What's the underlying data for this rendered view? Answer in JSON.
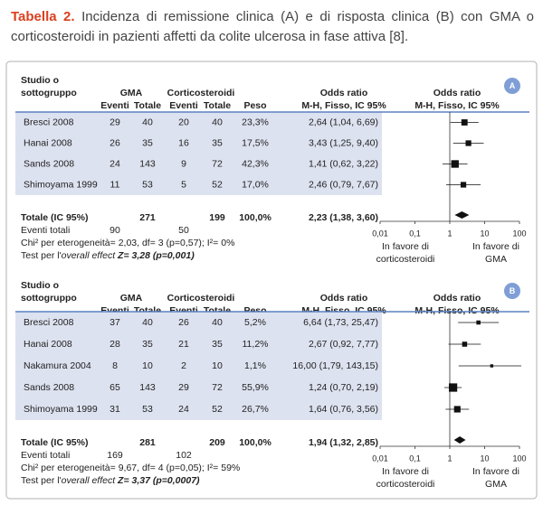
{
  "title": {
    "label": "Tabella 2.",
    "text": "Incidenza di remissione clinica (A) e di risposta clinica (B) con GMA o corticosteroidi in pazienti affetti da colite ulcerosa in fase attiva [8]."
  },
  "panels": [
    {
      "badge": "A",
      "header": {
        "study_lines": [
          "Studio o",
          "sottogruppo"
        ],
        "gma": "GMA",
        "cort": "Corticosteroidi",
        "events": "Eventi",
        "total": "Totale",
        "weight": "Peso",
        "or_lines": [
          "Odds ratio",
          "M-H, Fisso, IC 95%"
        ],
        "plot_lines": [
          "Odds ratio",
          "M-H, Fisso, IC 95%"
        ]
      },
      "rows": [
        {
          "study": "Bresci 2008",
          "gma_events": 29,
          "gma_total": 40,
          "cort_events": 20,
          "cort_total": 40,
          "weight": {
            "value": 23.3,
            "label": "23,3%"
          },
          "or": 2.64,
          "ci": [
            1.04,
            6.69
          ],
          "or_label": "2,64 (1,04, 6,69)"
        },
        {
          "study": "Hanai 2008",
          "gma_events": 26,
          "gma_total": 35,
          "cort_events": 16,
          "cort_total": 35,
          "weight": {
            "value": 17.5,
            "label": "17,5%"
          },
          "or": 3.43,
          "ci": [
            1.25,
            9.4
          ],
          "or_label": "3,43 (1,25, 9,40)"
        },
        {
          "study": "Sands 2008",
          "gma_events": 24,
          "gma_total": 143,
          "cort_events": 9,
          "cort_total": 72,
          "weight": {
            "value": 42.3,
            "label": "42,3%"
          },
          "or": 1.41,
          "ci": [
            0.62,
            3.22
          ],
          "or_label": "1,41 (0,62, 3,22)"
        },
        {
          "study": "Shimoyama 1999",
          "gma_events": 11,
          "gma_total": 53,
          "cort_events": 5,
          "cort_total": 52,
          "weight": {
            "value": 17.0,
            "label": "17,0%"
          },
          "or": 2.46,
          "ci": [
            0.79,
            7.67
          ],
          "or_label": "2,46 (0,79, 7,67)"
        }
      ],
      "total": {
        "label": "Totale (IC 95%)",
        "gma_total": 271,
        "cort_total": 199,
        "weight": "100,0%",
        "or": 2.23,
        "ci": [
          1.38,
          3.6
        ],
        "or_label": "2,23 (1,38, 3,60)"
      },
      "events": {
        "label": "Eventi totali",
        "gma": 90,
        "cort": 50
      },
      "heterogeneity": "Chi² per eterogeneità= 2,03, df= 3 (p=0,57); I²= 0%",
      "overall": [
        "Test per l'",
        "overall effect",
        " Z= 3,28 (p=0,001)"
      ],
      "axis": {
        "xlim": [
          0.01,
          100
        ],
        "xticks": [
          {
            "value": 0.01,
            "label": "0,01"
          },
          {
            "value": 0.1,
            "label": "0,1"
          },
          1,
          10,
          100
        ],
        "favors_left": [
          "In favore di",
          "corticosteroidi"
        ],
        "favors_right": [
          "In favore di",
          "GMA"
        ]
      }
    },
    {
      "badge": "B",
      "header": {
        "study_lines": [
          "Studio o",
          "sottogruppo"
        ],
        "gma": "GMA",
        "cort": "Corticosteroidi",
        "events": "Eventi",
        "total": "Totale",
        "weight": "Peso",
        "or_lines": [
          "Odds ratio",
          "M-H, Fisso, IC 95%"
        ],
        "plot_lines": [
          "Odds ratio",
          "M-H, Fisso, IC 95%"
        ]
      },
      "rows": [
        {
          "study": "Bresci 2008",
          "gma_events": 37,
          "gma_total": 40,
          "cort_events": 26,
          "cort_total": 40,
          "weight": {
            "value": 5.2,
            "label": "5,2%"
          },
          "or": 6.64,
          "ci": [
            1.73,
            25.47
          ],
          "or_label": "6,64 (1,73, 25,47)"
        },
        {
          "study": "Hanai 2008",
          "gma_events": 28,
          "gma_total": 35,
          "cort_events": 21,
          "cort_total": 35,
          "weight": {
            "value": 11.2,
            "label": "11,2%"
          },
          "or": 2.67,
          "ci": [
            0.92,
            7.77
          ],
          "or_label": "2,67 (0,92, 7,77)"
        },
        {
          "study": "Nakamura 2004",
          "gma_events": 8,
          "gma_total": 10,
          "cort_events": 2,
          "cort_total": 10,
          "weight": {
            "value": 1.1,
            "label": "1,1%"
          },
          "or": 16.0,
          "ci": [
            1.79,
            143.15
          ],
          "or_label": "16,00 (1,79, 143,15)"
        },
        {
          "study": "Sands 2008",
          "gma_events": 65,
          "gma_total": 143,
          "cort_events": 29,
          "cort_total": 72,
          "weight": {
            "value": 55.9,
            "label": "55,9%"
          },
          "or": 1.24,
          "ci": [
            0.7,
            2.19
          ],
          "or_label": "1,24 (0,70, 2,19)"
        },
        {
          "study": "Shimoyama 1999",
          "gma_events": 31,
          "gma_total": 53,
          "cort_events": 24,
          "cort_total": 52,
          "weight": {
            "value": 26.7,
            "label": "26,7%"
          },
          "or": 1.64,
          "ci": [
            0.76,
            3.56
          ],
          "or_label": "1,64 (0,76, 3,56)"
        }
      ],
      "total": {
        "label": "Totale (IC 95%)",
        "gma_total": 281,
        "cort_total": 209,
        "weight": "100,0%",
        "or": 1.94,
        "ci": [
          1.32,
          2.85
        ],
        "or_label": "1,94 (1,32, 2,85)"
      },
      "events": {
        "label": "Eventi totali",
        "gma": 169,
        "cort": 102
      },
      "heterogeneity": "Chi² per eterogeneità= 9,67, df= 4 (p=0,05); I²= 59%",
      "overall": [
        "Test per l'",
        "overall effect",
        " Z= 3,37 (p=0,0007)"
      ],
      "axis": {
        "xlim": [
          0.01,
          100
        ],
        "xticks": [
          {
            "value": 0.01,
            "label": "0,01"
          },
          {
            "value": 0.1,
            "label": "0,1"
          },
          1,
          10,
          100
        ],
        "favors_left": [
          "In favore di",
          "corticosteroidi"
        ],
        "favors_right": [
          "In favore di",
          "GMA"
        ]
      }
    }
  ]
}
